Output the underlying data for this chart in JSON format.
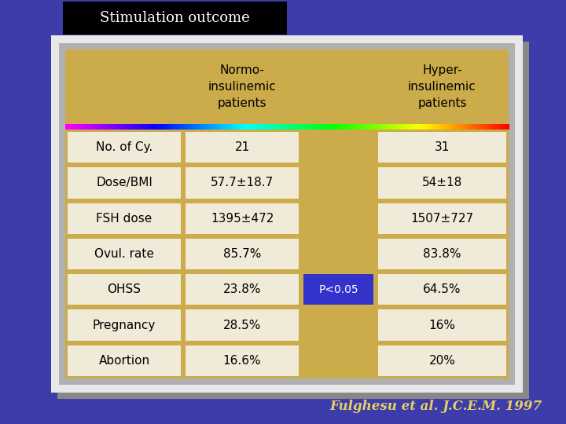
{
  "title": "Stimulation outcome",
  "subtitle": "Fulghesu et al. J.C.E.M. 1997",
  "bg_color": "#3c3caa",
  "title_bg": "#000000",
  "title_color": "#ffffff",
  "table_bg": "#ccab4a",
  "cell_bg": "#f0ead8",
  "frame_outer": "#c8c8c8",
  "frame_inner": "#e8e8e8",
  "col_headers": [
    "Normo-\ninsulinemic\npatients",
    "Hyper-\ninsulinemic\npatients"
  ],
  "row_labels": [
    "No. of Cy.",
    "Dose/BMI",
    "FSH dose",
    "Ovul. rate",
    "OHSS",
    "Pregnancy",
    "Abortion"
  ],
  "col1_values": [
    "21",
    "57.7±18.7",
    "1395±472",
    "85.7%",
    "23.8%",
    "28.5%",
    "16.6%"
  ],
  "col2_values": [
    "31",
    "54±18",
    "1507±727",
    "83.8%",
    "64.5%",
    "16%",
    "20%"
  ],
  "pvalue_row": 4,
  "pvalue_text": "P<0.05",
  "pvalue_bg": "#3333cc",
  "pvalue_color": "#ffffff",
  "subtitle_color": "#e8d060"
}
